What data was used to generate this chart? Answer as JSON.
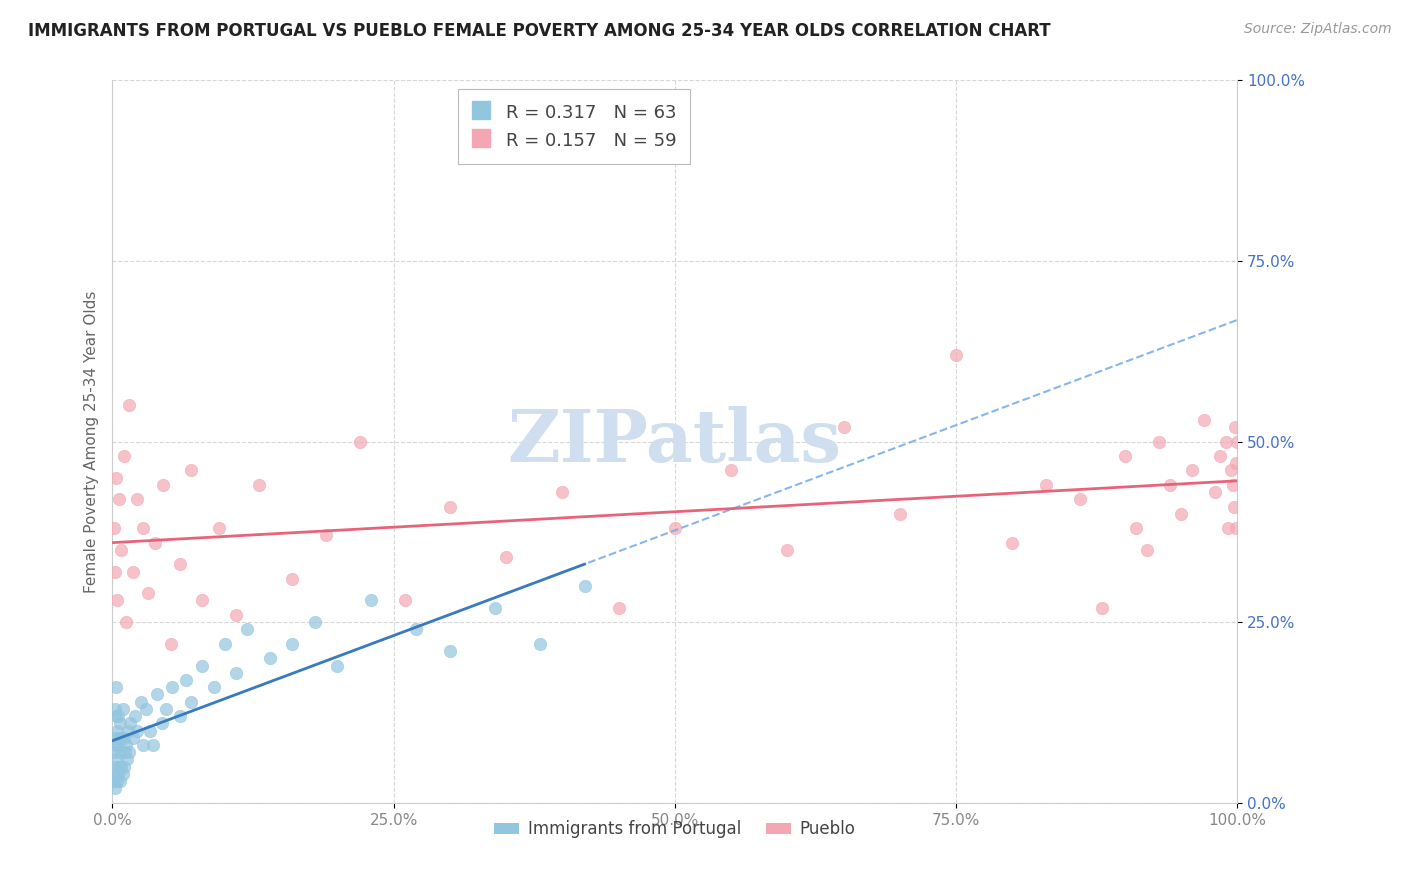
{
  "title": "IMMIGRANTS FROM PORTUGAL VS PUEBLO FEMALE POVERTY AMONG 25-34 YEAR OLDS CORRELATION CHART",
  "source": "Source: ZipAtlas.com",
  "ylabel": "Female Poverty Among 25-34 Year Olds",
  "xlim": [
    0.0,
    1.0
  ],
  "ylim": [
    0.0,
    1.0
  ],
  "xticks": [
    0.0,
    0.25,
    0.5,
    0.75,
    1.0
  ],
  "yticks": [
    0.0,
    0.25,
    0.5,
    0.75,
    1.0
  ],
  "xticklabels": [
    "0.0%",
    "25.0%",
    "50.0%",
    "75.0%",
    "100.0%"
  ],
  "yticklabels": [
    "0.0%",
    "25.0%",
    "50.0%",
    "75.0%",
    "100.0%"
  ],
  "legend_labels": [
    "Immigrants from Portugal",
    "Pueblo"
  ],
  "legend_R": [
    0.317,
    0.157
  ],
  "legend_N": [
    63,
    59
  ],
  "blue_color": "#92c5de",
  "pink_color": "#f4a7b2",
  "blue_line_color": "#3a7bbf",
  "pink_line_color": "#e8637a",
  "tick_color": "#4472c4",
  "watermark_color": "#d0dff0",
  "blue_scatter_x": [
    0.001,
    0.001,
    0.002,
    0.002,
    0.002,
    0.002,
    0.003,
    0.003,
    0.003,
    0.003,
    0.004,
    0.004,
    0.004,
    0.005,
    0.005,
    0.005,
    0.006,
    0.006,
    0.007,
    0.007,
    0.007,
    0.008,
    0.008,
    0.009,
    0.009,
    0.01,
    0.01,
    0.011,
    0.012,
    0.013,
    0.014,
    0.015,
    0.016,
    0.018,
    0.02,
    0.022,
    0.025,
    0.027,
    0.03,
    0.033,
    0.036,
    0.04,
    0.044,
    0.048,
    0.053,
    0.06,
    0.065,
    0.07,
    0.08,
    0.09,
    0.1,
    0.11,
    0.12,
    0.14,
    0.16,
    0.18,
    0.2,
    0.23,
    0.27,
    0.3,
    0.34,
    0.38,
    0.42
  ],
  "blue_scatter_y": [
    0.03,
    0.07,
    0.02,
    0.05,
    0.09,
    0.13,
    0.04,
    0.08,
    0.12,
    0.16,
    0.03,
    0.06,
    0.1,
    0.04,
    0.08,
    0.12,
    0.05,
    0.09,
    0.03,
    0.07,
    0.11,
    0.05,
    0.09,
    0.04,
    0.13,
    0.05,
    0.09,
    0.07,
    0.08,
    0.06,
    0.1,
    0.07,
    0.11,
    0.09,
    0.12,
    0.1,
    0.14,
    0.08,
    0.13,
    0.1,
    0.08,
    0.15,
    0.11,
    0.13,
    0.16,
    0.12,
    0.17,
    0.14,
    0.19,
    0.16,
    0.22,
    0.18,
    0.24,
    0.2,
    0.22,
    0.25,
    0.19,
    0.28,
    0.24,
    0.21,
    0.27,
    0.22,
    0.3
  ],
  "pink_scatter_x": [
    0.001,
    0.002,
    0.003,
    0.004,
    0.006,
    0.008,
    0.01,
    0.012,
    0.015,
    0.018,
    0.022,
    0.027,
    0.032,
    0.038,
    0.045,
    0.052,
    0.06,
    0.07,
    0.08,
    0.095,
    0.11,
    0.13,
    0.16,
    0.19,
    0.22,
    0.26,
    0.3,
    0.35,
    0.4,
    0.45,
    0.5,
    0.55,
    0.6,
    0.65,
    0.7,
    0.75,
    0.8,
    0.83,
    0.86,
    0.88,
    0.9,
    0.91,
    0.92,
    0.93,
    0.94,
    0.95,
    0.96,
    0.97,
    0.98,
    0.985,
    0.99,
    0.992,
    0.994,
    0.996,
    0.997,
    0.998,
    0.999,
    0.999,
    1.0
  ],
  "pink_scatter_y": [
    0.38,
    0.32,
    0.45,
    0.28,
    0.42,
    0.35,
    0.48,
    0.25,
    0.55,
    0.32,
    0.42,
    0.38,
    0.29,
    0.36,
    0.44,
    0.22,
    0.33,
    0.46,
    0.28,
    0.38,
    0.26,
    0.44,
    0.31,
    0.37,
    0.5,
    0.28,
    0.41,
    0.34,
    0.43,
    0.27,
    0.38,
    0.46,
    0.35,
    0.52,
    0.4,
    0.62,
    0.36,
    0.44,
    0.42,
    0.27,
    0.48,
    0.38,
    0.35,
    0.5,
    0.44,
    0.4,
    0.46,
    0.53,
    0.43,
    0.48,
    0.5,
    0.38,
    0.46,
    0.44,
    0.41,
    0.52,
    0.47,
    0.38,
    0.5
  ]
}
